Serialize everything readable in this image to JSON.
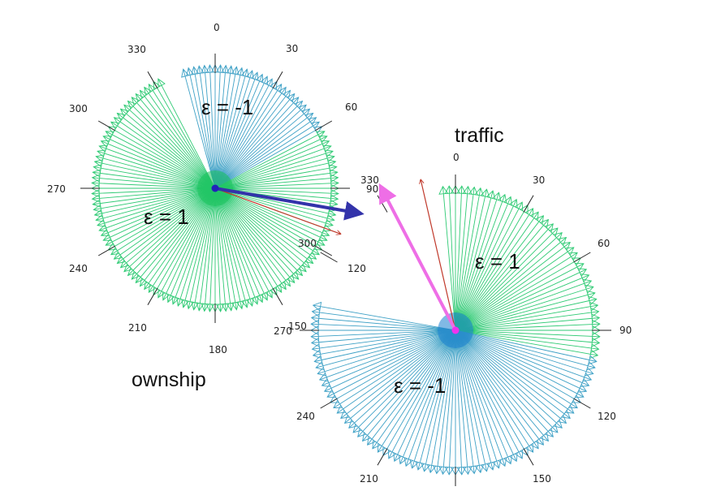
{
  "colors": {
    "positive": "#2fca74",
    "negative": "#3fa1c6",
    "positive_core": "#19c25b",
    "negative_core": "#1a7fcf",
    "heading_red": "#c0392b",
    "ownship_vector": "#3333aa",
    "traffic_vector": "#ee6ee6",
    "tick": "#222222"
  },
  "ownship": {
    "caption": "ownship",
    "eps_positive": "ε = 1",
    "eps_negative": "ε = -1",
    "negative_sector_deg": [
      345,
      60
    ],
    "heading_deg": 110,
    "velocity_icon": "arrow-right-icon",
    "tick_labels": [
      "0",
      "30",
      "60",
      "120",
      "180",
      "210",
      "240",
      "270",
      "300",
      "330"
    ]
  },
  "traffic": {
    "caption": "traffic",
    "eps_positive": "ε = 1",
    "eps_negative": "ε = -1",
    "positive_sector_deg": [
      355,
      102
    ],
    "heading_deg": 347,
    "velocity_icon": "arrow-up-left-icon",
    "tick_labels": [
      "0",
      "30",
      "60",
      "90",
      "120",
      "150",
      "210",
      "240"
    ]
  },
  "extra_labels": {
    "ownship_inner_90": "90",
    "ownship_inner_300": "300",
    "traffic_inner_330": "330",
    "traffic_inner_270": "270",
    "traffic_inner_150": "150"
  }
}
